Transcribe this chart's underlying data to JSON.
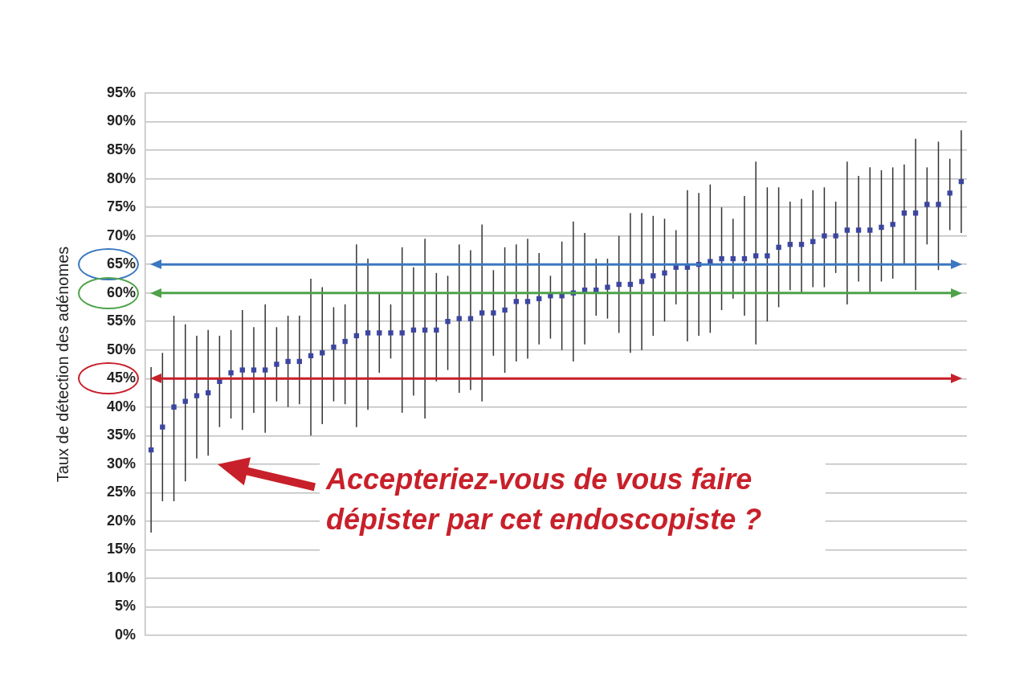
{
  "chart_data": {
    "type": "scatter",
    "ylabel": "Taux de détection des adénomes",
    "categories": [
      null,
      null,
      null,
      null,
      null,
      null,
      null,
      null,
      null,
      null,
      null,
      null,
      null,
      null,
      null,
      null,
      null,
      null,
      null,
      null,
      null,
      null,
      null,
      null,
      null,
      null,
      null,
      null,
      null,
      null,
      null,
      null,
      null,
      null,
      null,
      null,
      null,
      null,
      null,
      null,
      null,
      null,
      null,
      null,
      null,
      null,
      null,
      null,
      null,
      null,
      null,
      null,
      null,
      null,
      null,
      null,
      null,
      null,
      null,
      null,
      null,
      null,
      null,
      null,
      null,
      null,
      null,
      null,
      null,
      null,
      null,
      null
    ],
    "series": [
      {
        "color": "#3c46a0",
        "values": [
          32.5,
          36.5,
          40,
          41,
          42,
          42.5,
          44.5,
          46,
          46.5,
          46.5,
          46.5,
          47.5,
          48,
          48,
          49,
          49.5,
          50.5,
          51.5,
          52.5,
          53,
          53,
          53,
          53,
          53.5,
          53.5,
          53.5,
          55,
          55.5,
          55.5,
          56.5,
          56.5,
          57,
          58.5,
          58.5,
          59,
          59.5,
          59.5,
          60,
          60.5,
          60.5,
          61,
          61.5,
          61.5,
          62,
          63,
          63.5,
          64.5,
          64.5,
          65,
          65.5,
          66,
          66,
          66,
          66.5,
          66.5,
          68,
          68.5,
          68.5,
          69,
          70,
          70,
          71,
          71,
          71,
          71.5,
          72,
          74,
          74,
          75.5,
          75.5,
          77.5,
          79.5
        ],
        "errors": [
          [
            18,
            47
          ],
          [
            23.5,
            49.5
          ],
          [
            23.5,
            56
          ],
          [
            27,
            54.5
          ],
          [
            31,
            52.5
          ],
          [
            31.5,
            53.5
          ],
          [
            36.5,
            52.5
          ],
          [
            38,
            53.5
          ],
          [
            36,
            57
          ],
          [
            39,
            54
          ],
          [
            35.5,
            58
          ],
          [
            41,
            54
          ],
          [
            40,
            56
          ],
          [
            40.5,
            56
          ],
          [
            35,
            62.5
          ],
          [
            37,
            61
          ],
          [
            41,
            57.5
          ],
          [
            40.5,
            58
          ],
          [
            36.5,
            68.5
          ],
          [
            39.5,
            66
          ],
          [
            46,
            60
          ],
          [
            48.5,
            58
          ],
          [
            39,
            68
          ],
          [
            42,
            64.5
          ],
          [
            38,
            69.5
          ],
          [
            44.5,
            63.5
          ],
          [
            46.5,
            63
          ],
          [
            42.5,
            68.5
          ],
          [
            43,
            67.5
          ],
          [
            41,
            72
          ],
          [
            49,
            64
          ],
          [
            46,
            68
          ],
          [
            48,
            68.5
          ],
          [
            48.5,
            69.5
          ],
          [
            51,
            67
          ],
          [
            52,
            63
          ],
          [
            50,
            69
          ],
          [
            48,
            72.5
          ],
          [
            51,
            70.5
          ],
          [
            56,
            66
          ],
          [
            55.5,
            66
          ],
          [
            53,
            70
          ],
          [
            49.5,
            74
          ],
          [
            50,
            74
          ],
          [
            52.5,
            73.5
          ],
          [
            55,
            73
          ],
          [
            58,
            71
          ],
          [
            51.5,
            78
          ],
          [
            52.5,
            77.5
          ],
          [
            53,
            79
          ],
          [
            57,
            75
          ],
          [
            59,
            73
          ],
          [
            56,
            77
          ],
          [
            51,
            83
          ],
          [
            55,
            78.5
          ],
          [
            57.5,
            78.5
          ],
          [
            60.5,
            76
          ],
          [
            60,
            76.5
          ],
          [
            61,
            78
          ],
          [
            61,
            78.5
          ],
          [
            63.5,
            76
          ],
          [
            58,
            83
          ],
          [
            62,
            80.5
          ],
          [
            60,
            82
          ],
          [
            62,
            81.5
          ],
          [
            62.5,
            82
          ],
          [
            65,
            82.5
          ],
          [
            60.5,
            87
          ],
          [
            68.5,
            82
          ],
          [
            64,
            86.5
          ],
          [
            71,
            83.5
          ],
          [
            70.5,
            88.5
          ]
        ]
      }
    ],
    "ylim": [
      0,
      95
    ],
    "yticks": [
      {
        "value": 0,
        "label": "0%"
      },
      {
        "value": 5,
        "label": "5%"
      },
      {
        "value": 10,
        "label": "10%"
      },
      {
        "value": 15,
        "label": "15%"
      },
      {
        "value": 20,
        "label": "20%"
      },
      {
        "value": 25,
        "label": "25%"
      },
      {
        "value": 30,
        "label": "30%"
      },
      {
        "value": 35,
        "label": "35%"
      },
      {
        "value": 40,
        "label": "40%"
      },
      {
        "value": 45,
        "label": "45%"
      },
      {
        "value": 50,
        "label": "50%"
      },
      {
        "value": 55,
        "label": "55%"
      },
      {
        "value": 60,
        "label": "60%"
      },
      {
        "value": 65,
        "label": "65%"
      },
      {
        "value": 70,
        "label": "70%"
      },
      {
        "value": 75,
        "label": "75%"
      },
      {
        "value": 80,
        "label": "80%"
      },
      {
        "value": 85,
        "label": "85%"
      },
      {
        "value": 90,
        "label": "90%"
      },
      {
        "value": 95,
        "label": "95%"
      }
    ],
    "ref_lines": [
      {
        "axis": "y",
        "value": 65,
        "color": "#3a78c0"
      },
      {
        "axis": "y",
        "value": 60,
        "color": "#4ea24a"
      },
      {
        "axis": "y",
        "value": 45,
        "color": "#c8202a"
      }
    ],
    "annotations": [
      "Accepteriez-vous de vous faire dépister par cet endoscopiste ?"
    ],
    "grid": "y",
    "tick_labels": "y",
    "legend": false,
    "marker": "square"
  }
}
